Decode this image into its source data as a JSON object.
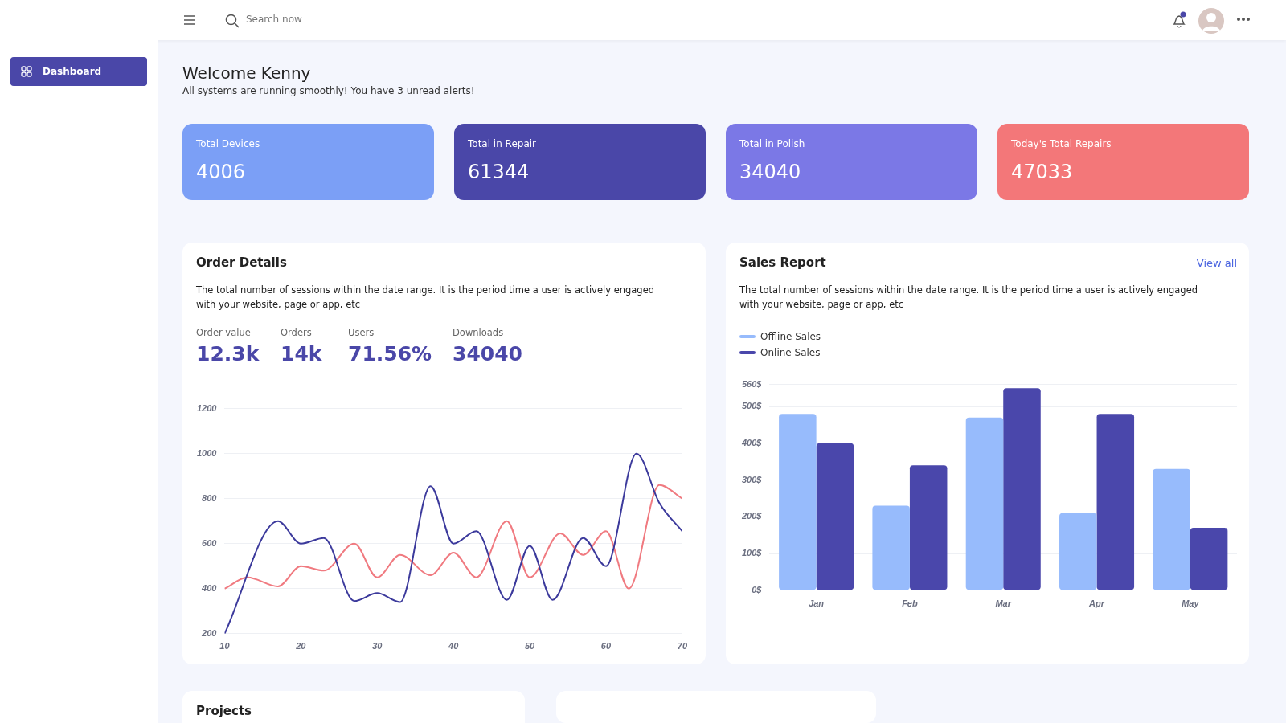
{
  "chart_data": [
    {
      "type": "other",
      "title": "Welcome Kenny",
      "subtitle": "All systems are running smoothly! You have 3 unread alerts!",
      "categories": [
        "Total Devices",
        "Total in Repair",
        "Total in Polish",
        "Today's Total Repairs"
      ],
      "values": [
        4006,
        61344,
        34040,
        47033
      ],
      "colors": [
        "#7b9ff6",
        "#4a47a8",
        "#7b78e6",
        "#f37779"
      ],
      "data_labels": true,
      "annotations": [
        "Search now",
        "Dashboard"
      ]
    },
    {
      "type": "line",
      "title": "Order Details",
      "subtitle": "The total number of sessions within the date range. It is the period time a user is actively engaged with your website, page or app, etc",
      "annotations": [
        "Order value",
        "12.3k",
        "Orders",
        "14k",
        "Users",
        "71.56%",
        "Downloads",
        "34040"
      ],
      "xlim": [
        10,
        70
      ],
      "xticks": [
        10,
        20,
        30,
        40,
        50,
        60,
        70
      ],
      "ylim": [
        200,
        1200
      ],
      "yticks": [
        200,
        400,
        600,
        800,
        1000,
        1200
      ],
      "grid": "y",
      "marker": "none",
      "legend": false,
      "series": [
        {
          "color": "#3c3a9c",
          "x": [
            10,
            17,
            20,
            23,
            27,
            30,
            33,
            37,
            40,
            43,
            47,
            50,
            53,
            57,
            60,
            64,
            67,
            70
          ],
          "values": [
            200,
            700,
            600,
            625,
            345,
            380,
            340,
            855,
            600,
            655,
            350,
            590,
            350,
            625,
            500,
            1000,
            780,
            655
          ]
        },
        {
          "color": "#f07a80",
          "x": [
            10,
            13,
            17,
            20,
            23,
            27,
            30,
            33,
            37,
            40,
            43,
            47,
            50,
            54,
            57,
            60,
            63,
            67,
            70
          ],
          "values": [
            400,
            450,
            410,
            500,
            480,
            600,
            450,
            550,
            460,
            560,
            450,
            700,
            450,
            645,
            550,
            655,
            400,
            860,
            800
          ]
        }
      ]
    },
    {
      "type": "bar",
      "title": "Sales Report",
      "subtitle": "The total number of sessions within the date range. It is the period time a user is actively engaged with your website, page or app, etc",
      "annotations": [
        "View all"
      ],
      "categories": [
        "Jan",
        "Feb",
        "Mar",
        "Apr",
        "May"
      ],
      "ylim": [
        0,
        560
      ],
      "yticks": [
        {
          "value": 0,
          "label": "0$"
        },
        {
          "value": 100,
          "label": "100$"
        },
        {
          "value": 200,
          "label": "200$"
        },
        {
          "value": 300,
          "label": "300$"
        },
        {
          "value": 400,
          "label": "400$"
        },
        {
          "value": 500,
          "label": "500$"
        },
        {
          "value": 560,
          "label": "560$"
        }
      ],
      "grid": "y",
      "legend": "top left",
      "series": [
        {
          "name": "Offline Sales",
          "color": "#97bbfc",
          "values": [
            480,
            230,
            470,
            210,
            330
          ]
        },
        {
          "name": "Online Sales",
          "color": "#4a47ab",
          "values": [
            400,
            340,
            550,
            480,
            170
          ]
        }
      ]
    },
    {
      "type": "other",
      "title": "Projects"
    }
  ]
}
